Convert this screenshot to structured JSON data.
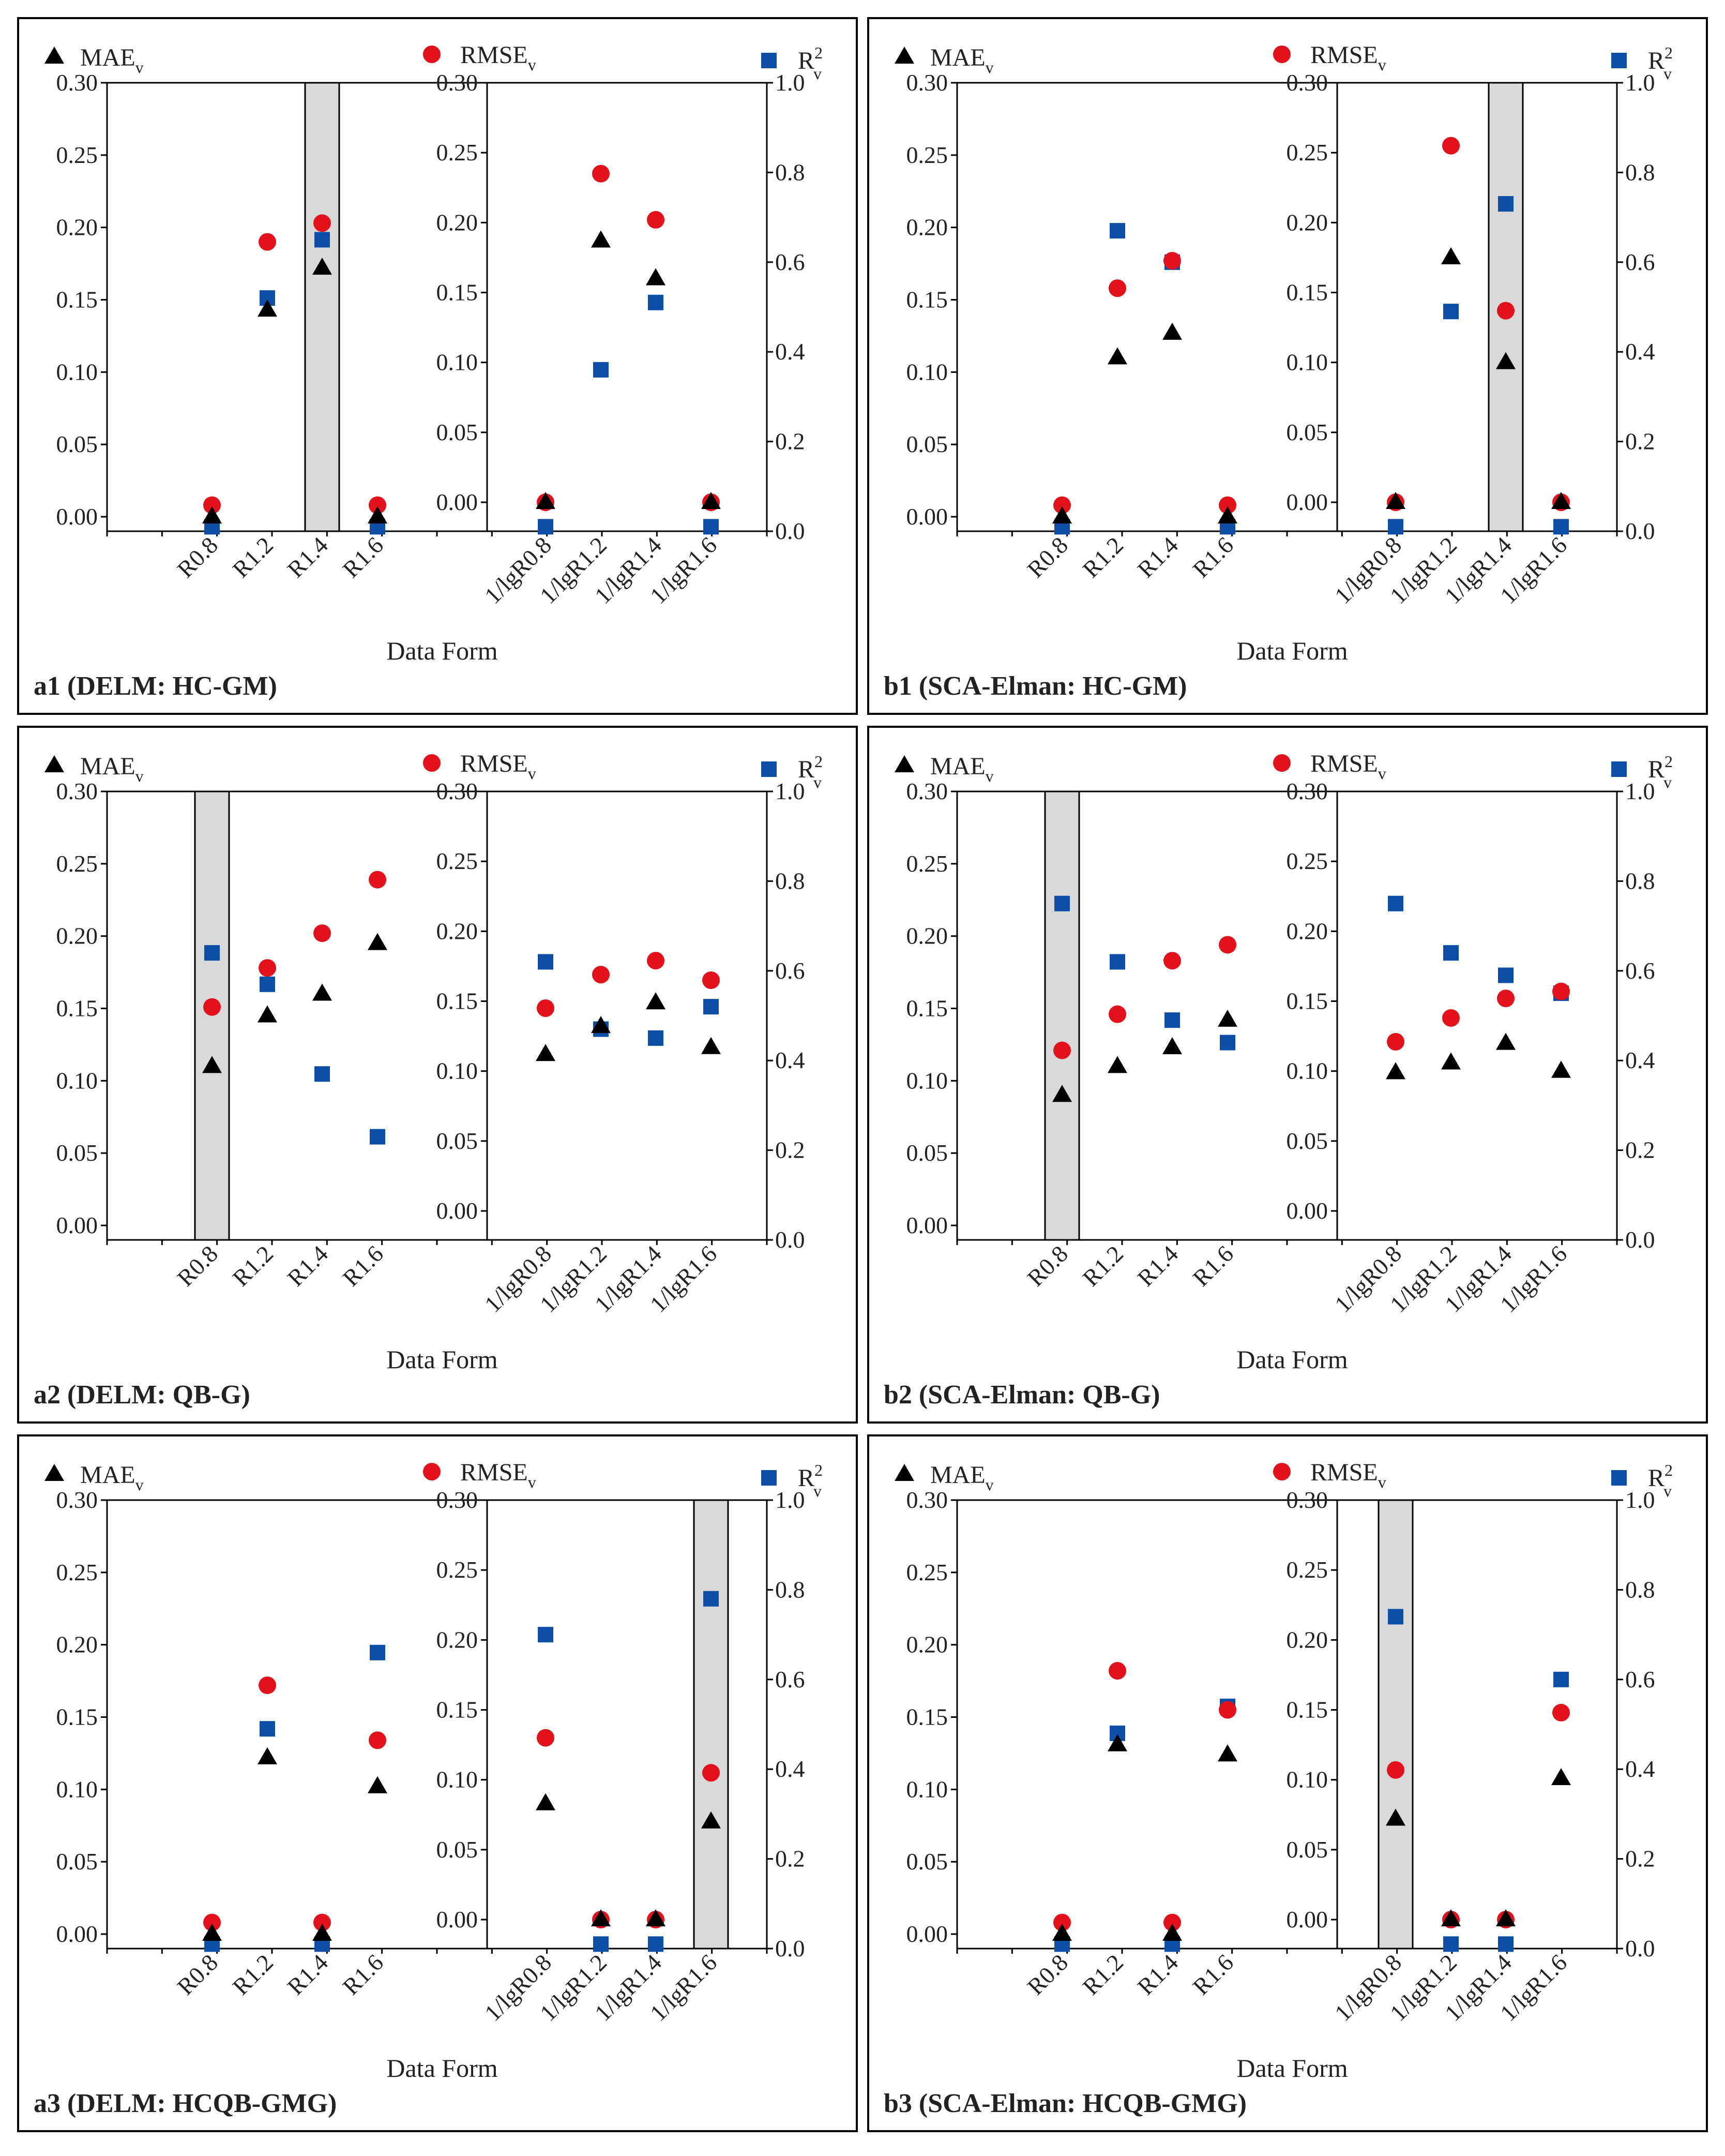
{
  "colors": {
    "mae": "#000000",
    "rmse": "#e3111b",
    "r2": "#0d4fa8",
    "highlight": "#d9d9d9",
    "frame": "#000000"
  },
  "legend": {
    "mae": {
      "base": "MAE",
      "sub": "v"
    },
    "rmse": {
      "base": "RMSE",
      "sub": "v"
    },
    "r2": {
      "base": "R",
      "sub": "v",
      "sup": "2"
    }
  },
  "axis": {
    "xlabel": "Data Form"
  },
  "chart_data": [
    {
      "id": "a1",
      "type": "scatter",
      "title": "a1 (DELM: HC-GM)",
      "left": {
        "categories": [
          "R0.8",
          "R1.2",
          "R1.4",
          "R1.6"
        ],
        "ylim": [
          0,
          0.3
        ],
        "yticks": [
          "0.00",
          "0.05",
          "0.10",
          "0.15",
          "0.20",
          "0.25",
          "0.30"
        ],
        "mae": [
          0.0,
          0.143,
          0.172,
          0.0
        ],
        "rmse": [
          0.008,
          0.19,
          0.203,
          0.008
        ],
        "r2": [
          0.01,
          0.52,
          0.65,
          0.01
        ]
      },
      "right": {
        "categories": [
          "1/lgR0.8",
          "1/lgR1.2",
          "1/lgR1.4",
          "1/lgR1.6"
        ],
        "ylim": [
          0,
          0.3
        ],
        "yticks": [
          "0.00",
          "0.05",
          "0.10",
          "0.15",
          "0.20",
          "0.25",
          "0.30"
        ],
        "mae": [
          0.0,
          0.187,
          0.16,
          0.0
        ],
        "rmse": [
          0.0,
          0.235,
          0.202,
          0.0
        ],
        "r2": [
          0.01,
          0.36,
          0.51,
          0.01
        ]
      },
      "r2_ylim": [
        0,
        1
      ],
      "r2_ticks": [
        "0.0",
        "0.2",
        "0.4",
        "0.6",
        "0.8",
        "1.0"
      ],
      "highlight": {
        "side": "left",
        "index": 2
      }
    },
    {
      "id": "b1",
      "type": "scatter",
      "title": "b1 (SCA-Elman: HC-GM)",
      "left": {
        "categories": [
          "R0.8",
          "R1.2",
          "R1.4",
          "R1.6"
        ],
        "ylim": [
          0,
          0.3
        ],
        "yticks": [
          "0.00",
          "0.05",
          "0.10",
          "0.15",
          "0.20",
          "0.25",
          "0.30"
        ],
        "mae": [
          0.0,
          0.11,
          0.127,
          0.0
        ],
        "rmse": [
          0.008,
          0.158,
          0.177,
          0.008
        ],
        "r2": [
          0.01,
          0.67,
          0.6,
          0.01
        ]
      },
      "right": {
        "categories": [
          "1/lgR0.8",
          "1/lgR1.2",
          "1/lgR1.4",
          "1/lgR1.6"
        ],
        "ylim": [
          0,
          0.3
        ],
        "yticks": [
          "0.00",
          "0.05",
          "0.10",
          "0.15",
          "0.20",
          "0.25",
          "0.30"
        ],
        "mae": [
          0.0,
          0.175,
          0.1,
          0.0
        ],
        "rmse": [
          0.0,
          0.255,
          0.137,
          0.0
        ],
        "r2": [
          0.01,
          0.49,
          0.73,
          0.01
        ]
      },
      "r2_ylim": [
        0,
        1
      ],
      "r2_ticks": [
        "0.0",
        "0.2",
        "0.4",
        "0.6",
        "0.8",
        "1.0"
      ],
      "highlight": {
        "side": "right",
        "index": 2
      }
    },
    {
      "id": "a2",
      "type": "scatter",
      "title": "a2 (DELM: QB-G)",
      "left": {
        "categories": [
          "R0.8",
          "R1.2",
          "R1.4",
          "R1.6"
        ],
        "ylim": [
          0,
          0.3
        ],
        "yticks": [
          "0.00",
          "0.05",
          "0.10",
          "0.15",
          "0.20",
          "0.25",
          "0.30"
        ],
        "mae": [
          0.11,
          0.145,
          0.16,
          0.195
        ],
        "rmse": [
          0.151,
          0.178,
          0.202,
          0.239
        ],
        "r2": [
          0.64,
          0.57,
          0.37,
          0.23
        ]
      },
      "right": {
        "categories": [
          "1/lgR0.8",
          "1/lgR1.2",
          "1/lgR1.4",
          "1/lgR1.6"
        ],
        "ylim": [
          0,
          0.3
        ],
        "yticks": [
          "0.00",
          "0.05",
          "0.10",
          "0.15",
          "0.20",
          "0.25",
          "0.30"
        ],
        "mae": [
          0.112,
          0.132,
          0.149,
          0.117
        ],
        "rmse": [
          0.145,
          0.169,
          0.179,
          0.165
        ],
        "r2": [
          0.62,
          0.47,
          0.45,
          0.52
        ]
      },
      "r2_ylim": [
        0,
        1
      ],
      "r2_ticks": [
        "0.0",
        "0.2",
        "0.4",
        "0.6",
        "0.8",
        "1.0"
      ],
      "highlight": {
        "side": "left",
        "index": 0
      }
    },
    {
      "id": "b2",
      "type": "scatter",
      "title": "b2 (SCA-Elman: QB-G)",
      "left": {
        "categories": [
          "R0.8",
          "R1.2",
          "R1.4",
          "R1.6"
        ],
        "ylim": [
          0,
          0.3
        ],
        "yticks": [
          "0.00",
          "0.05",
          "0.10",
          "0.15",
          "0.20",
          "0.25",
          "0.30"
        ],
        "mae": [
          0.09,
          0.11,
          0.123,
          0.142
        ],
        "rmse": [
          0.121,
          0.146,
          0.183,
          0.194
        ],
        "r2": [
          0.75,
          0.62,
          0.49,
          0.44
        ]
      },
      "right": {
        "categories": [
          "1/lgR0.8",
          "1/lgR1.2",
          "1/lgR1.4",
          "1/lgR1.6"
        ],
        "ylim": [
          0,
          0.3
        ],
        "yticks": [
          "0.00",
          "0.05",
          "0.10",
          "0.15",
          "0.20",
          "0.25",
          "0.30"
        ],
        "mae": [
          0.099,
          0.106,
          0.12,
          0.1
        ],
        "rmse": [
          0.121,
          0.138,
          0.152,
          0.157
        ],
        "r2": [
          0.75,
          0.64,
          0.59,
          0.55
        ]
      },
      "r2_ylim": [
        0,
        1
      ],
      "r2_ticks": [
        "0.0",
        "0.2",
        "0.4",
        "0.6",
        "0.8",
        "1.0"
      ],
      "highlight": {
        "side": "left",
        "index": 0
      }
    },
    {
      "id": "a3",
      "type": "scatter",
      "title": "a3 (DELM: HCQB-GMG)",
      "left": {
        "categories": [
          "R0.8",
          "R1.2",
          "R1.4",
          "R1.6"
        ],
        "ylim": [
          0,
          0.3
        ],
        "yticks": [
          "0.00",
          "0.05",
          "0.10",
          "0.15",
          "0.20",
          "0.25",
          "0.30"
        ],
        "mae": [
          0.0,
          0.122,
          0.0,
          0.102
        ],
        "rmse": [
          0.008,
          0.172,
          0.008,
          0.134
        ],
        "r2": [
          0.01,
          0.49,
          0.01,
          0.66
        ]
      },
      "right": {
        "categories": [
          "1/lgR0.8",
          "1/lgR1.2",
          "1/lgR1.4",
          "1/lgR1.6"
        ],
        "ylim": [
          0,
          0.3
        ],
        "yticks": [
          "0.00",
          "0.05",
          "0.10",
          "0.15",
          "0.20",
          "0.25",
          "0.30"
        ],
        "mae": [
          0.083,
          0.0,
          0.0,
          0.07
        ],
        "rmse": [
          0.13,
          0.0,
          0.0,
          0.105
        ],
        "r2": [
          0.7,
          0.01,
          0.01,
          0.78
        ]
      },
      "r2_ylim": [
        0,
        1
      ],
      "r2_ticks": [
        "0.0",
        "0.2",
        "0.4",
        "0.6",
        "0.8",
        "1.0"
      ],
      "highlight": {
        "side": "right",
        "index": 3
      }
    },
    {
      "id": "b3",
      "type": "scatter",
      "title": "b3 (SCA-Elman: HCQB-GMG)",
      "left": {
        "categories": [
          "R0.8",
          "R1.2",
          "R1.4",
          "R1.6"
        ],
        "ylim": [
          0,
          0.3
        ],
        "yticks": [
          "0.00",
          "0.05",
          "0.10",
          "0.15",
          "0.20",
          "0.25",
          "0.30"
        ],
        "mae": [
          0.0,
          0.131,
          0.0,
          0.124
        ],
        "rmse": [
          0.008,
          0.182,
          0.008,
          0.155
        ],
        "r2": [
          0.01,
          0.48,
          0.01,
          0.54
        ]
      },
      "right": {
        "categories": [
          "1/lgR0.8",
          "1/lgR1.2",
          "1/lgR1.4",
          "1/lgR1.6"
        ],
        "ylim": [
          0,
          0.3
        ],
        "yticks": [
          "0.00",
          "0.05",
          "0.10",
          "0.15",
          "0.20",
          "0.25",
          "0.30"
        ],
        "mae": [
          0.072,
          0.0,
          0.0,
          0.101
        ],
        "rmse": [
          0.107,
          0.0,
          0.0,
          0.148
        ],
        "r2": [
          0.74,
          0.01,
          0.01,
          0.6
        ]
      },
      "r2_ylim": [
        0,
        1
      ],
      "r2_ticks": [
        "0.0",
        "0.2",
        "0.4",
        "0.6",
        "0.8",
        "1.0"
      ],
      "highlight": {
        "side": "right",
        "index": 0
      }
    }
  ]
}
